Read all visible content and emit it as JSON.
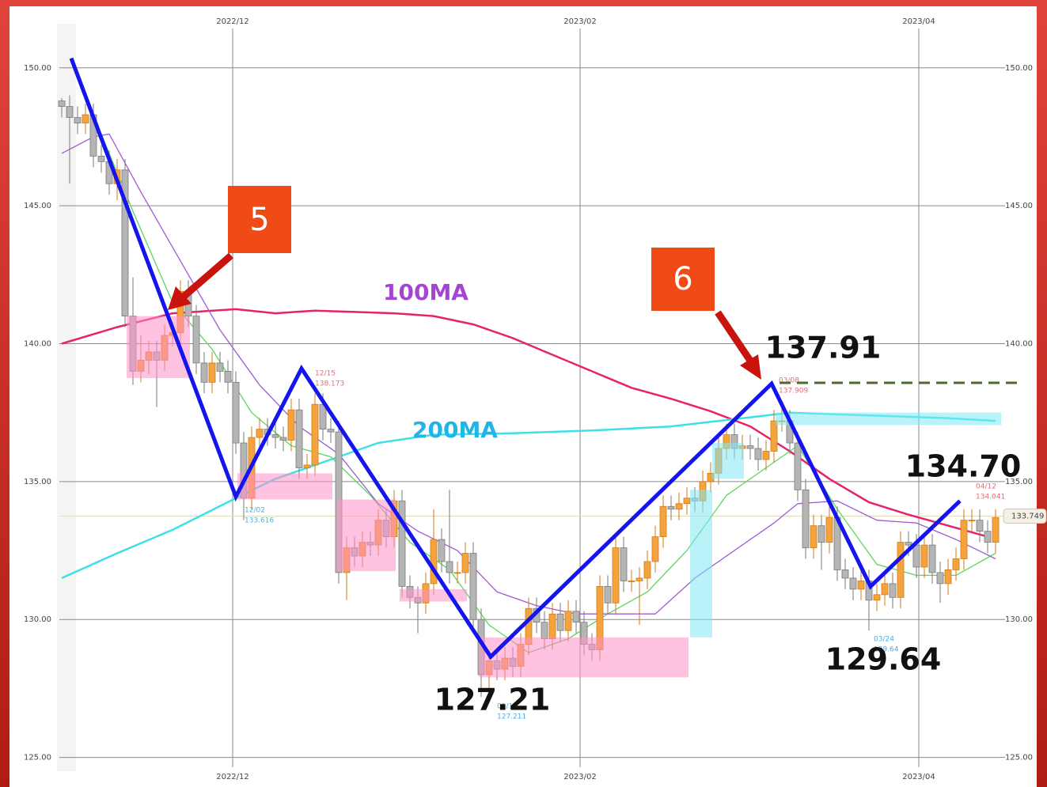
{
  "chart_data": {
    "type": "candlestick",
    "open": [
      148.8,
      148.6,
      148.2,
      148.0,
      148.3,
      146.8,
      146.6,
      145.8,
      146.3,
      141.0,
      139.0,
      139.4,
      139.7,
      139.4,
      140.3,
      140.4,
      141.9,
      141.0,
      139.3,
      138.6,
      139.3,
      139.0,
      138.6,
      136.4,
      134.4,
      136.6,
      136.9,
      136.7,
      136.6,
      136.5,
      137.6,
      135.5,
      135.6,
      137.8,
      136.9,
      136.8,
      131.7,
      132.6,
      132.3,
      132.8,
      132.7,
      133.6,
      133.0,
      134.3,
      131.2,
      130.8,
      130.6,
      131.3,
      132.9,
      132.1,
      131.7,
      131.7,
      132.4,
      130.0,
      128.0,
      128.5,
      128.2,
      128.6,
      128.3,
      129.1,
      130.4,
      129.9,
      129.3,
      130.2,
      129.6,
      130.3,
      129.9,
      129.1,
      128.9,
      131.2,
      130.6,
      132.6,
      131.4,
      131.4,
      131.5,
      132.1,
      133.0,
      134.1,
      134.0,
      134.2,
      134.4,
      134.3,
      135.0,
      135.3,
      136.2,
      136.7,
      136.2,
      136.3,
      136.2,
      135.8,
      136.1,
      137.2,
      137.2,
      136.4,
      134.7,
      132.6,
      133.4,
      132.8,
      133.7,
      131.8,
      131.5,
      131.1,
      131.4,
      130.7,
      130.9,
      131.3,
      130.8,
      132.8,
      132.7,
      131.9,
      132.7,
      131.7,
      131.3,
      131.8,
      132.2,
      133.6,
      133.6,
      133.2,
      132.8
    ],
    "high": [
      148.9,
      149.0,
      148.6,
      148.7,
      148.7,
      147.2,
      147.0,
      146.7,
      146.7,
      142.4,
      140.3,
      140.1,
      140.1,
      140.7,
      140.8,
      142.3,
      142.3,
      141.4,
      139.7,
      139.7,
      139.7,
      139.4,
      139.0,
      136.8,
      137.0,
      137.3,
      137.3,
      137.1,
      137.0,
      138.0,
      138.0,
      136.0,
      138.2,
      138.2,
      137.3,
      137.2,
      133.0,
      133.0,
      133.2,
      133.2,
      134.0,
      134.0,
      134.7,
      134.7,
      131.6,
      131.2,
      131.7,
      134.0,
      133.3,
      134.7,
      132.1,
      132.8,
      132.8,
      130.4,
      128.9,
      128.9,
      129.0,
      129.0,
      129.5,
      130.8,
      130.8,
      130.3,
      130.6,
      130.6,
      130.7,
      130.7,
      130.3,
      129.5,
      131.6,
      131.6,
      133.0,
      133.0,
      131.8,
      131.9,
      132.5,
      133.4,
      134.5,
      134.5,
      134.6,
      134.8,
      134.8,
      135.4,
      135.7,
      136.6,
      137.1,
      137.1,
      136.7,
      136.7,
      136.6,
      136.5,
      137.6,
      137.9,
      137.6,
      136.8,
      135.1,
      133.8,
      133.8,
      134.1,
      134.1,
      132.2,
      131.9,
      131.8,
      131.8,
      131.3,
      131.7,
      131.7,
      133.2,
      133.2,
      133.1,
      133.1,
      133.1,
      132.1,
      132.2,
      132.6,
      134.0,
      134.0,
      134.0,
      133.6,
      134.0
    ],
    "low": [
      148.2,
      145.8,
      147.6,
      147.6,
      146.4,
      146.2,
      145.4,
      145.2,
      140.6,
      138.5,
      138.6,
      138.9,
      137.7,
      139.0,
      139.9,
      140.0,
      140.6,
      138.9,
      138.2,
      138.2,
      138.6,
      138.2,
      136.0,
      133.6,
      134.0,
      136.2,
      136.3,
      136.2,
      136.1,
      136.1,
      135.1,
      135.1,
      135.2,
      136.5,
      136.4,
      131.3,
      130.7,
      131.9,
      131.9,
      132.3,
      132.3,
      132.6,
      132.6,
      130.8,
      130.4,
      129.5,
      130.2,
      130.9,
      131.7,
      131.3,
      131.3,
      131.3,
      129.6,
      127.2,
      127.4,
      127.8,
      127.8,
      127.9,
      127.9,
      128.7,
      129.5,
      128.9,
      128.9,
      129.2,
      129.2,
      129.5,
      128.7,
      128.5,
      128.5,
      130.2,
      130.2,
      131.0,
      131.0,
      129.8,
      131.1,
      131.7,
      132.6,
      133.6,
      133.6,
      133.8,
      133.9,
      133.9,
      134.6,
      134.9,
      135.8,
      135.8,
      135.8,
      135.8,
      135.4,
      135.4,
      135.7,
      136.8,
      136.0,
      134.3,
      132.2,
      132.2,
      131.8,
      132.4,
      131.4,
      131.1,
      130.7,
      130.7,
      129.6,
      130.3,
      130.5,
      130.4,
      130.4,
      132.3,
      131.5,
      131.5,
      131.3,
      130.6,
      130.9,
      131.4,
      131.8,
      133.2,
      132.8,
      132.4,
      132.4
    ],
    "close": [
      148.6,
      148.2,
      148.0,
      148.3,
      146.8,
      146.6,
      145.8,
      146.3,
      141.0,
      139.0,
      139.4,
      139.7,
      139.4,
      140.3,
      140.4,
      141.9,
      141.0,
      139.3,
      138.6,
      139.3,
      139.0,
      138.6,
      136.4,
      134.4,
      136.6,
      136.9,
      136.7,
      136.6,
      136.5,
      137.6,
      135.5,
      135.6,
      137.8,
      136.9,
      136.8,
      131.7,
      132.6,
      132.3,
      132.8,
      132.7,
      133.6,
      133.0,
      134.3,
      131.2,
      130.8,
      130.6,
      131.3,
      132.9,
      132.1,
      131.7,
      131.7,
      132.4,
      130.0,
      128.0,
      128.5,
      128.2,
      128.6,
      128.3,
      129.1,
      130.4,
      129.9,
      129.3,
      130.2,
      129.6,
      130.3,
      129.9,
      129.1,
      128.9,
      131.2,
      130.6,
      132.6,
      131.4,
      131.4,
      131.5,
      132.1,
      133.0,
      134.1,
      134.0,
      134.2,
      134.4,
      134.3,
      135.0,
      135.3,
      136.2,
      136.7,
      136.2,
      136.3,
      136.2,
      135.8,
      136.1,
      137.2,
      137.2,
      136.4,
      134.7,
      132.6,
      133.4,
      132.8,
      133.7,
      131.8,
      131.5,
      131.1,
      131.4,
      130.7,
      130.9,
      131.3,
      130.8,
      132.8,
      132.7,
      131.9,
      132.7,
      131.7,
      131.3,
      131.8,
      132.2,
      133.6,
      133.6,
      133.2,
      132.8,
      133.7
    ],
    "up_color": "#f5a33c",
    "down_color": "#b5b5b5",
    "xlim": [
      -6.3,
      118.7
    ],
    "ylim": [
      124.5,
      151.6
    ],
    "xticks": [
      {
        "value": 21.6,
        "label": "2022/12"
      },
      {
        "value": 65.5,
        "label": "2023/02"
      },
      {
        "value": 108.3,
        "label": "2023/04"
      }
    ],
    "yticks": [
      {
        "value": 125,
        "label": "125.00"
      },
      {
        "value": 130,
        "label": "130.00"
      },
      {
        "value": 135,
        "label": "135.00"
      },
      {
        "value": 140,
        "label": "140.00"
      },
      {
        "value": 145,
        "label": "145.00"
      },
      {
        "value": 150,
        "label": "150.00"
      }
    ],
    "grid": true,
    "lines": [
      {
        "name": "100MA",
        "color": "#e6226e",
        "label_color": "#a445d6",
        "x": [
          0,
          7,
          14,
          22,
          27,
          32,
          37,
          42,
          47,
          52,
          57,
          62,
          67,
          72,
          77,
          82,
          87,
          92,
          97,
          102,
          107,
          112,
          117
        ],
        "values": [
          140.0,
          140.6,
          141.1,
          141.25,
          141.1,
          141.2,
          141.15,
          141.1,
          141.0,
          140.7,
          140.2,
          139.6,
          139.0,
          138.4,
          138.0,
          137.55,
          137.0,
          136.1,
          135.1,
          134.25,
          133.8,
          133.4,
          133.0
        ]
      },
      {
        "name": "200MA",
        "color": "#3ee0e8",
        "label_color": "#1fb5e6",
        "x": [
          0,
          7,
          14,
          22,
          27,
          34,
          40,
          47,
          57,
          67,
          77,
          87,
          92,
          102,
          112,
          118
        ],
        "values": [
          131.5,
          132.4,
          133.25,
          134.4,
          135.1,
          135.8,
          136.4,
          136.7,
          136.75,
          136.85,
          137.0,
          137.33,
          137.5,
          137.4,
          137.3,
          137.2
        ]
      },
      {
        "color": "#5cd65c",
        "x": [
          5,
          9,
          14,
          19,
          24,
          29,
          34,
          39,
          44,
          49,
          54,
          59,
          64,
          69,
          74,
          79,
          84,
          89,
          93,
          98,
          103,
          108,
          113,
          118
        ],
        "values": [
          147.6,
          144.8,
          141.5,
          139.8,
          137.5,
          136.3,
          135.9,
          134.5,
          132.8,
          131.8,
          129.8,
          128.8,
          129.3,
          130.2,
          131.0,
          132.5,
          134.5,
          135.5,
          136.3,
          134.0,
          132.0,
          131.6,
          131.6,
          132.4
        ]
      },
      {
        "color": "#a05ad8",
        "x": [
          0,
          4,
          6,
          10,
          15,
          20,
          25,
          30,
          35,
          40,
          45,
          50,
          55,
          60,
          65,
          70,
          75,
          80,
          85,
          90,
          93,
          98,
          103,
          108,
          113,
          118
        ],
        "values": [
          146.9,
          147.5,
          147.6,
          145.5,
          143.0,
          140.5,
          138.5,
          137.0,
          136.0,
          134.2,
          133.2,
          132.5,
          131.0,
          130.5,
          130.2,
          130.2,
          130.2,
          131.5,
          132.5,
          133.5,
          134.2,
          134.3,
          133.6,
          133.5,
          132.9,
          132.2
        ]
      }
    ],
    "zigzag": {
      "color": "#1414ee",
      "x": [
        1.2,
        22,
        30.3,
        54.2,
        89.7,
        102.2,
        113.5
      ],
      "values": [
        150.35,
        134.45,
        139.1,
        128.65,
        138.55,
        131.2,
        134.3
      ]
    },
    "zones": [
      {
        "x": [
          8.2,
          16.2
        ],
        "y": [
          138.75,
          141.0
        ],
        "color": "#ff8fc8"
      },
      {
        "x": [
          22.2,
          34.2
        ],
        "y": [
          134.35,
          135.3
        ],
        "color": "#ff8fc8"
      },
      {
        "x": [
          34.7,
          42.2
        ],
        "y": [
          131.75,
          134.35
        ],
        "color": "#ff8fc8"
      },
      {
        "x": [
          42.7,
          51.2
        ],
        "y": [
          130.65,
          131.1
        ],
        "color": "#ff8fc8"
      },
      {
        "x": [
          52.7,
          79.2
        ],
        "y": [
          127.9,
          129.35
        ],
        "color": "#ff8fc8"
      },
      {
        "x": [
          79.4,
          82.2
        ],
        "y": [
          129.35,
          134.7
        ],
        "color": "#7fe8f2"
      },
      {
        "x": [
          82.2,
          86.2
        ],
        "y": [
          135.1,
          136.4
        ],
        "color": "#7fe8f2"
      },
      {
        "x": [
          90.2,
          118.7
        ],
        "y": [
          137.05,
          137.5
        ],
        "color": "#7fe8f2"
      }
    ],
    "last_price": 133.749,
    "callouts": [
      "5",
      "6"
    ],
    "price_labels": [
      "137.91",
      "134.70",
      "129.64",
      "127.21"
    ],
    "marker_labels": [
      [
        "12/02",
        "133.616"
      ],
      [
        "12/15",
        "138.173"
      ],
      [
        "01/16",
        "127.211"
      ],
      [
        "03/08",
        "137.909"
      ],
      [
        "03/24",
        "129.64"
      ],
      [
        "04/12",
        "134.041"
      ]
    ]
  }
}
